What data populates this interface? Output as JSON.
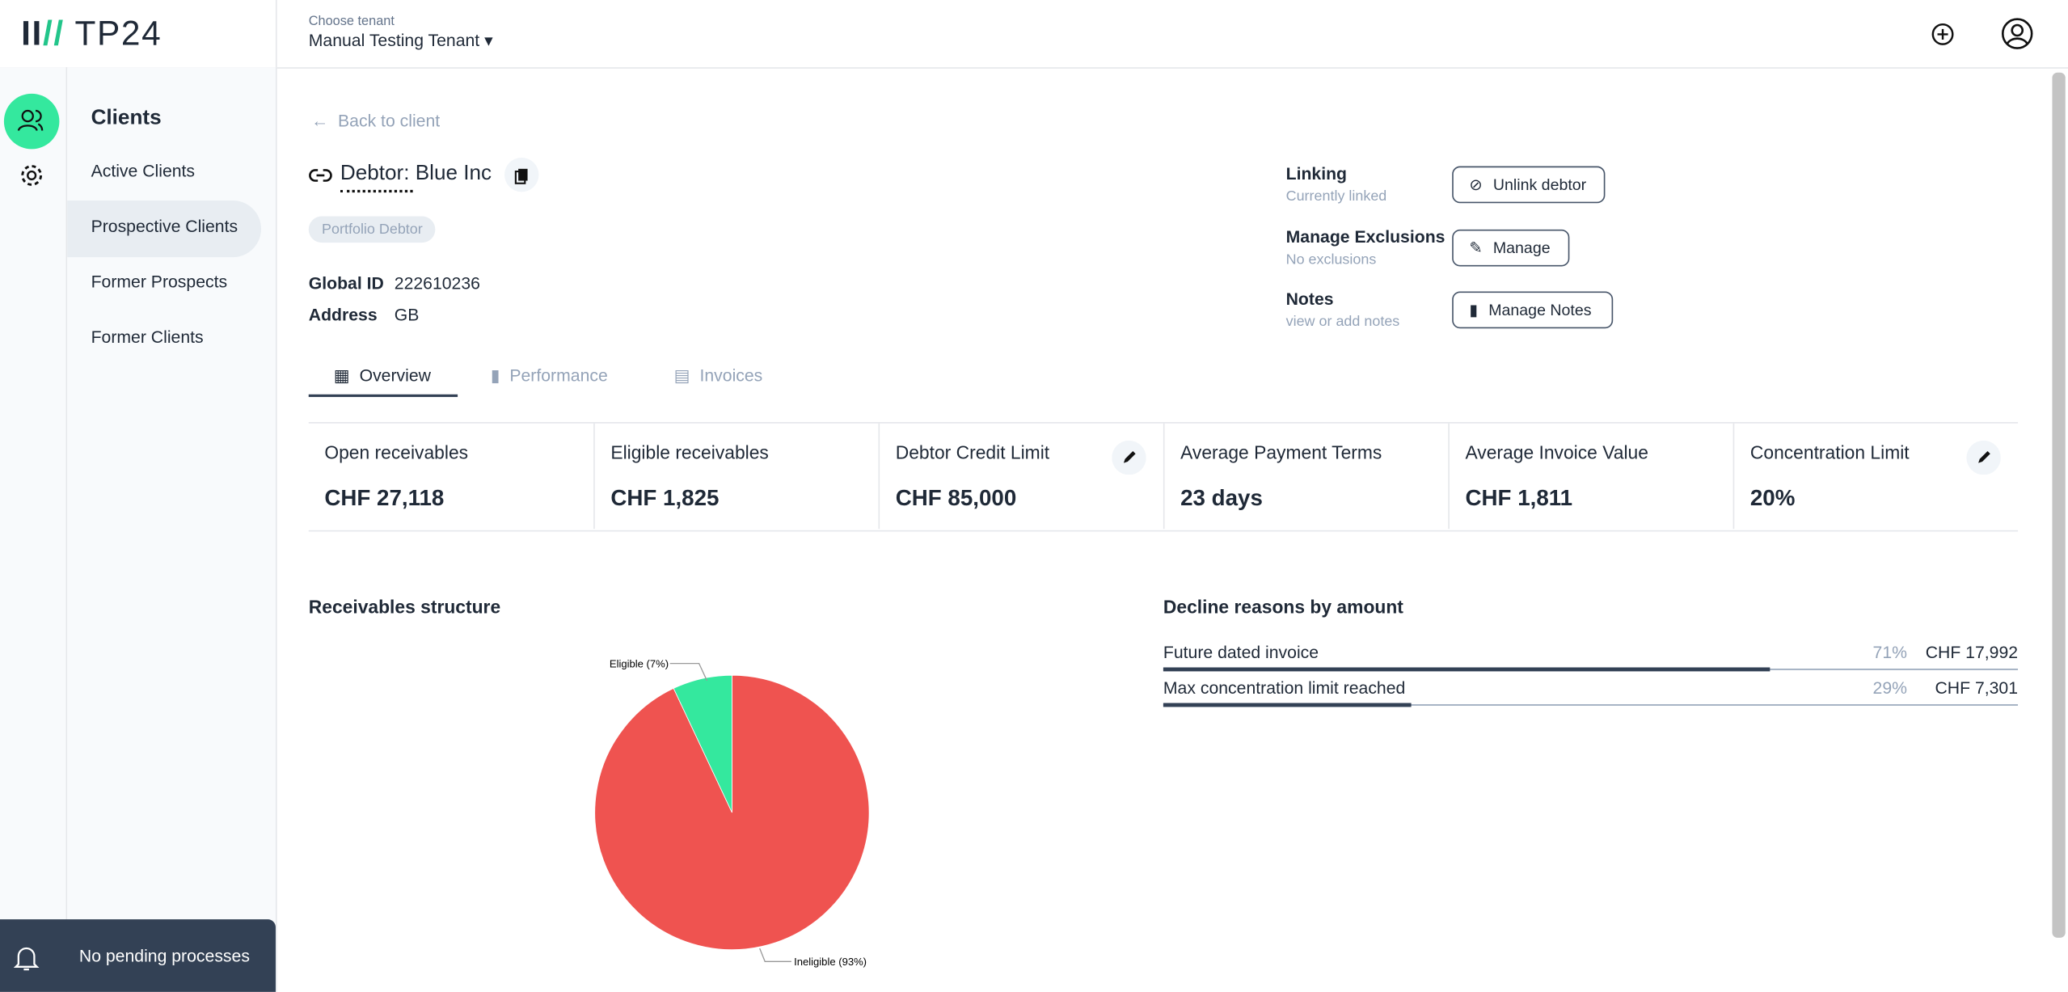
{
  "header": {
    "logo": "TP24",
    "tenant_label": "Choose tenant",
    "tenant": "Manual Testing Tenant"
  },
  "nav": {
    "title": "Clients",
    "items": [
      "Active Clients",
      "Prospective Clients",
      "Former Prospects",
      "Former Clients"
    ]
  },
  "notification": "No pending processes",
  "back": "Back to client",
  "debtor": {
    "title": "Debtor: Blue Inc",
    "badge": "Portfolio Debtor",
    "fields": [
      {
        "label": "Global ID",
        "value": "222610236"
      },
      {
        "label": "Address",
        "value": "GB"
      }
    ]
  },
  "actions": [
    {
      "title": "Linking",
      "subtitle": "Currently linked",
      "button": "Unlink debtor"
    },
    {
      "title": "Manage Exclusions",
      "subtitle": "No exclusions",
      "button": "Manage"
    },
    {
      "title": "Notes",
      "subtitle": "view or add notes",
      "button": "Manage Notes"
    }
  ],
  "tabs": [
    "Overview",
    "Performance",
    "Invoices"
  ],
  "kpis": [
    {
      "label": "Open receivables",
      "value": "CHF 27,118"
    },
    {
      "label": "Eligible receivables",
      "value": "CHF 1,825"
    },
    {
      "label": "Debtor Credit Limit",
      "value": "CHF 85,000"
    },
    {
      "label": "Average Payment Terms",
      "value": "23 days"
    },
    {
      "label": "Average Invoice Value",
      "value": "CHF 1,811"
    },
    {
      "label": "Concentration Limit",
      "value": "20%"
    }
  ],
  "receivables": {
    "title": "Receivables structure",
    "slices": [
      {
        "label": "Eligible (7%)",
        "value": 7,
        "color": "#34e89e"
      },
      {
        "label": "Ineligible (93%)",
        "value": 93,
        "color": "#ef5350"
      }
    ]
  },
  "decline": {
    "title": "Decline reasons by amount",
    "rows": [
      {
        "reason": "Future dated invoice",
        "share": 71,
        "share_label": "71%",
        "amount": "CHF 17,992"
      },
      {
        "reason": "Max concentration limit reached",
        "share": 29,
        "share_label": "29%",
        "amount": "CHF 7,301"
      }
    ]
  }
}
